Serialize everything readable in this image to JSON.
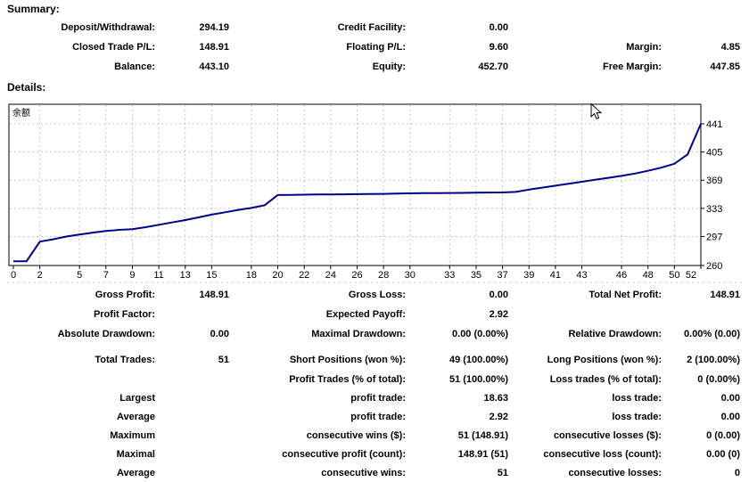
{
  "summary": {
    "heading": "Summary:",
    "rows": [
      {
        "cells": [
          "Deposit/Withdrawal:",
          "294.19",
          "Credit Facility:",
          "0.00",
          "",
          ""
        ]
      },
      {
        "cells": [
          "Closed Trade P/L:",
          "148.91",
          "Floating P/L:",
          "9.60",
          "Margin:",
          "4.85"
        ]
      },
      {
        "cells": [
          "Balance:",
          "443.10",
          "Equity:",
          "452.70",
          "Free Margin:",
          "447.85"
        ]
      }
    ]
  },
  "details": {
    "heading": "Details:",
    "rows": [
      {
        "cells": [
          "Gross Profit:",
          "148.91",
          "Gross Loss:",
          "0.00",
          "Total Net Profit:",
          "148.91"
        ]
      },
      {
        "cells": [
          "Profit Factor:",
          "",
          "Expected Payoff:",
          "2.92",
          "",
          ""
        ]
      },
      {
        "cells": [
          "Absolute Drawdown:",
          "0.00",
          "Maximal Drawdown:",
          "0.00 (0.00%)",
          "Relative Drawdown:",
          "0.00% (0.00)"
        ]
      },
      {
        "cells": [
          "Total Trades:",
          "51",
          "Short Positions (won %):",
          "49 (100.00%)",
          "Long Positions (won %):",
          "2 (100.00%)"
        ]
      },
      {
        "cells": [
          "",
          "",
          "Profit Trades (% of total):",
          "51 (100.00%)",
          "Loss trades (% of total):",
          "0 (0.00%)"
        ]
      },
      {
        "cells": [
          "Largest",
          "",
          "profit trade:",
          "18.63",
          "loss trade:",
          "0.00"
        ]
      },
      {
        "cells": [
          "Average",
          "",
          "profit trade:",
          "2.92",
          "loss trade:",
          "0.00"
        ]
      },
      {
        "cells": [
          "Maximum",
          "",
          "consecutive wins ($):",
          "51 (148.91)",
          "consecutive losses ($):",
          "0 (0.00)"
        ]
      },
      {
        "cells": [
          "Maximal",
          "",
          "consecutive profit (count):",
          "148.91 (51)",
          "consecutive loss (count):",
          "0.00 (0)"
        ]
      },
      {
        "cells": [
          "Average",
          "",
          "consecutive wins:",
          "51",
          "consecutive losses:",
          "0"
        ]
      }
    ]
  },
  "chart_data": {
    "type": "line",
    "title": "余额",
    "xlabel": "",
    "ylabel": "",
    "legend_position": "none",
    "grid": true,
    "xlim": [
      0,
      52
    ],
    "ylim": [
      260,
      465
    ],
    "x_ticks": [
      0,
      2,
      5,
      7,
      9,
      11,
      13,
      15,
      18,
      20,
      22,
      24,
      26,
      28,
      30,
      33,
      35,
      37,
      39,
      41,
      43,
      46,
      48,
      50,
      52
    ],
    "y_ticks": [
      441,
      405,
      369,
      333,
      297,
      260
    ],
    "series": [
      {
        "name": "余额",
        "x_is_trade_index": true,
        "values": [
          265.5,
          265.5,
          290.5,
          293.5,
          297,
          299.5,
          302,
          304,
          305.5,
          306.5,
          309,
          312,
          315,
          318,
          321.5,
          325,
          328,
          331,
          333.5,
          337,
          350,
          350.3,
          350.5,
          350.7,
          350.8,
          351,
          351.2,
          351.4,
          351.5,
          352,
          352.2,
          352.4,
          352.5,
          352.7,
          352.8,
          353,
          353.2,
          353.4,
          354,
          357,
          359.5,
          362,
          364.5,
          367,
          369.5,
          372,
          374.5,
          377.5,
          381,
          385,
          390,
          402,
          441
        ]
      }
    ],
    "colors": {
      "line": "#00008b",
      "grid": "#c4c4c4",
      "border": "#000000",
      "text": "#000000",
      "background": "#ffffff"
    }
  }
}
